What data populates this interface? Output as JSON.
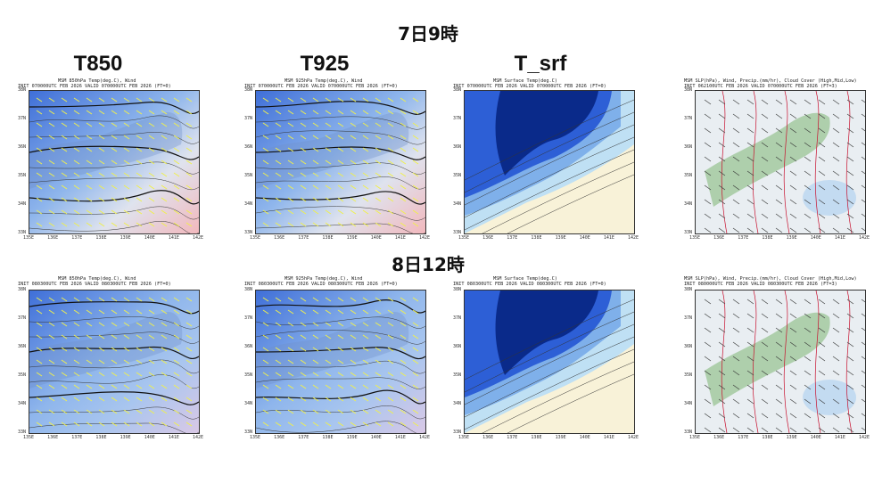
{
  "rows": [
    {
      "heading": "7日9時",
      "panels": [
        {
          "line1": "MSM 850hPa Temp(deg.C), Wind",
          "line2": "INIT 070000UTC FEB 2026   VALID 070000UTC FEB 2026  (FT=0)"
        },
        {
          "line1": "MSM 925hPa Temp(deg.C), Wind",
          "line2": "INIT 070000UTC FEB 2026   VALID 070000UTC FEB 2026  (FT=0)"
        },
        {
          "line1": "MSM Surface Temp(deg.C)",
          "line2": "INIT 070000UTC FEB 2026   VALID 070000UTC FEB 2026  (FT=0)"
        },
        {
          "line1": "MSM SLP(hPa), Wind, Precip.(mm/hr), Cloud Cover (High,Mid,Low)",
          "line2": "INIT 062100UTC FEB 2026   VALID 070000UTC FEB 2026  (FT=3)"
        }
      ]
    },
    {
      "heading": "8日12時",
      "panels": [
        {
          "line1": "MSM 850hPa Temp(deg.C), Wind",
          "line2": "INIT 080300UTC FEB 2026   VALID 080300UTC FEB 2026  (FT=0)"
        },
        {
          "line1": "MSM 925hPa Temp(deg.C), Wind",
          "line2": "INIT 080300UTC FEB 2026   VALID 080300UTC FEB 2026  (FT=0)"
        },
        {
          "line1": "MSM Surface Temp(deg.C)",
          "line2": "INIT 080300UTC FEB 2026   VALID 080300UTC FEB 2026  (FT=0)"
        },
        {
          "line1": "MSM SLP(hPa), Wind, Precip.(mm/hr), Cloud Cover (High,Mid,Low)",
          "line2": "INIT 080000UTC FEB 2026   VALID 080300UTC FEB 2026  (FT=3)"
        }
      ]
    }
  ],
  "column_labels": [
    "T850",
    "T925",
    "T_srf"
  ],
  "lat_ticks": [
    "38N",
    "37N",
    "36N",
    "35N",
    "34N",
    "33N"
  ],
  "lon_ticks": [
    "135E",
    "136E",
    "137E",
    "138E",
    "139E",
    "140E",
    "141E",
    "142E"
  ],
  "colors": {
    "cold_deep": "#0a2a8a",
    "cold_mid": "#2d5fd6",
    "cold_light": "#7fb0ea",
    "pale_blue": "#bfe0f4",
    "cream": "#f8f2d8",
    "warm_pink": "#f2b8bd",
    "wind_yellow": "#f0f04a",
    "slp_red": "#c8102e",
    "land_green": "#9fc79a"
  }
}
